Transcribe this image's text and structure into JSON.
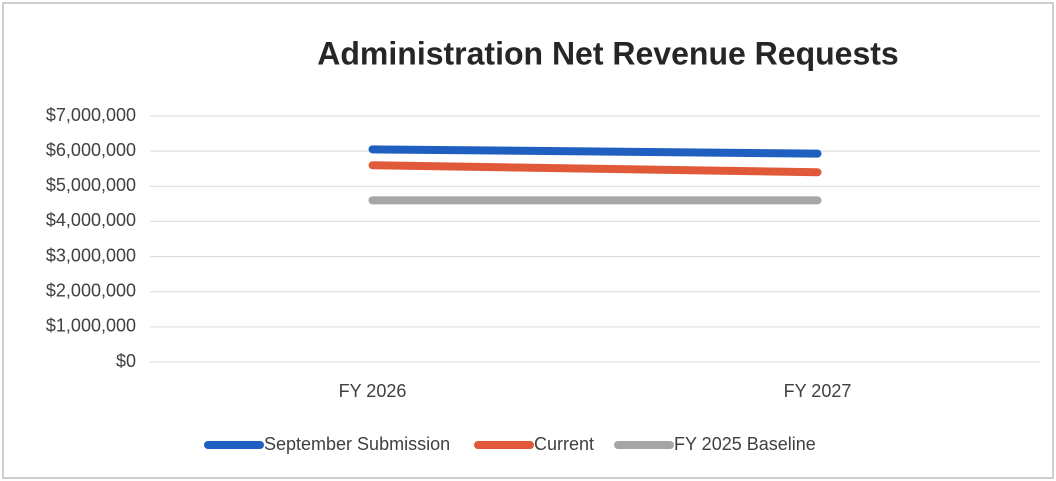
{
  "chart_data": {
    "type": "line",
    "title": "Administration Net Revenue Requests",
    "categories": [
      "FY 2026",
      "FY 2027"
    ],
    "series": [
      {
        "name": "September Submission",
        "color": "#1f5fbf",
        "values": [
          6050000,
          5930000
        ]
      },
      {
        "name": "Current",
        "color": "#e05a3a",
        "values": [
          5600000,
          5400000
        ]
      },
      {
        "name": "FY 2025 Baseline",
        "color": "#a6a6a6",
        "values": [
          4600000,
          4600000
        ]
      }
    ],
    "ylim": [
      0,
      7000000
    ],
    "yticks": [
      {
        "value": 0,
        "label": "$0"
      },
      {
        "value": 1000000,
        "label": "$1,000,000"
      },
      {
        "value": 2000000,
        "label": "$2,000,000"
      },
      {
        "value": 3000000,
        "label": "$3,000,000"
      },
      {
        "value": 4000000,
        "label": "$4,000,000"
      },
      {
        "value": 5000000,
        "label": "$5,000,000"
      },
      {
        "value": 6000000,
        "label": "$6,000,000"
      },
      {
        "value": 7000000,
        "label": "$7,000,000"
      }
    ],
    "grid": true,
    "legend": "bottom"
  }
}
